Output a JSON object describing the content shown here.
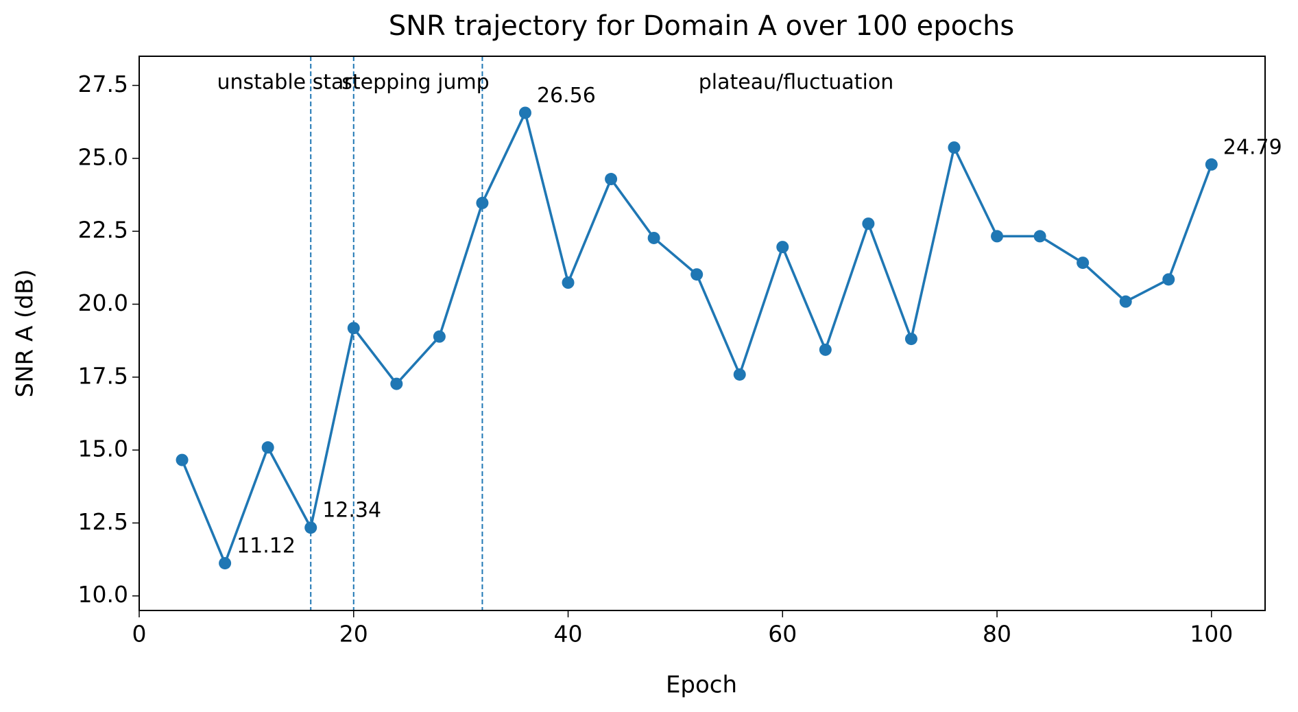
{
  "chart_data": {
    "type": "line",
    "title": "SNR trajectory for Domain A over 100 epochs",
    "xlabel": "Epoch",
    "ylabel": "SNR A (dB)",
    "x": [
      4,
      8,
      12,
      16,
      20,
      24,
      28,
      32,
      36,
      40,
      44,
      48,
      52,
      56,
      60,
      64,
      68,
      72,
      76,
      80,
      84,
      88,
      92,
      96,
      100
    ],
    "series": [
      {
        "name": "SNR A",
        "color": "#1f77b4",
        "values": [
          14.66,
          11.12,
          15.09,
          12.34,
          19.18,
          17.27,
          18.89,
          23.47,
          26.56,
          20.74,
          24.29,
          22.27,
          21.02,
          17.59,
          21.96,
          18.44,
          22.76,
          18.81,
          25.37,
          22.33,
          22.33,
          21.42,
          20.09,
          20.85,
          24.79
        ]
      }
    ],
    "labeled_points": [
      1,
      3,
      8,
      24
    ],
    "vlines": [
      16,
      20,
      32
    ],
    "phases": [
      "unstable start",
      "stepping jump",
      "plateau/fluctuation"
    ],
    "xlim": [
      0,
      105
    ],
    "ylim": [
      9.5,
      28.5
    ],
    "xticks": [
      0,
      20,
      40,
      60,
      80,
      100
    ],
    "yticks": [
      {
        "value": 10,
        "label": "10.0"
      },
      {
        "value": 12.5,
        "label": "12.5"
      },
      {
        "value": 15,
        "label": "15.0"
      },
      {
        "value": 17.5,
        "label": "17.5"
      },
      {
        "value": 20,
        "label": "20.0"
      },
      {
        "value": 22.5,
        "label": "22.5"
      },
      {
        "value": 25,
        "label": "25.0"
      },
      {
        "value": 27.5,
        "label": "27.5"
      }
    ],
    "grid": false
  }
}
